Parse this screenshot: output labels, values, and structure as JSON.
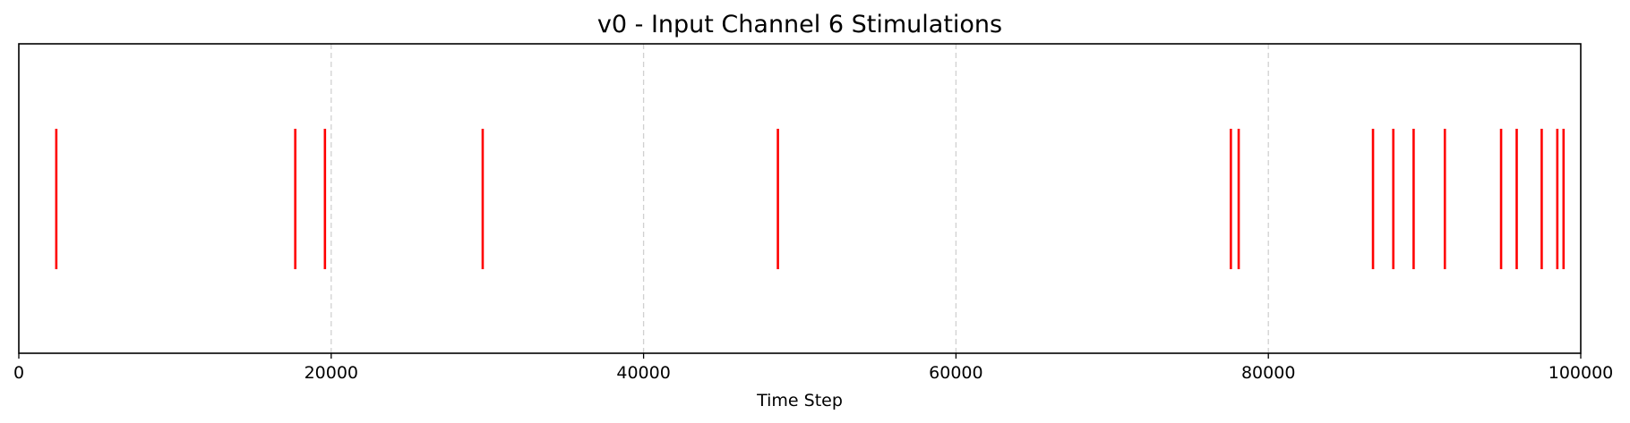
{
  "chart_data": {
    "type": "eventplot",
    "title": "v0 - Input Channel 6 Stimulations",
    "xlabel": "Time Step",
    "ylabel": "",
    "xlim": [
      0,
      100000
    ],
    "xticks": [
      0,
      20000,
      40000,
      60000,
      80000,
      100000
    ],
    "xtick_labels": [
      "0",
      "20000",
      "40000",
      "60000",
      "80000",
      "100000"
    ],
    "grid": "x-axis only, dashed",
    "series": [
      {
        "color": "#ff0000",
        "events": [
          2400,
          17700,
          19600,
          29700,
          48600,
          77600,
          78100,
          86700,
          88000,
          89300,
          91300,
          94900,
          95900,
          97500,
          98500,
          98900
        ]
      }
    ],
    "colors": {
      "event": "#ff0000",
      "grid": "#d0d0d0",
      "axis": "#000000"
    }
  }
}
